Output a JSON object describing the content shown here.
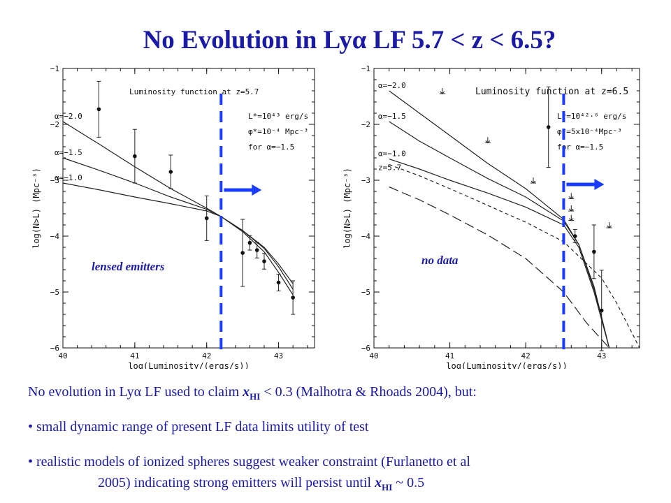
{
  "title": {
    "prefix": "No Evolution in Ly",
    "greek": "α",
    "suffix": " LF 5.7 < z < 6.5?"
  },
  "body": {
    "line1": {
      "pre": "No evolution in Ly",
      "greek": "α",
      "mid": " LF used to claim ",
      "x": "x",
      "sub": "HI",
      "post": " < 0.3 (Malhotra & Rhoads 2004), but:"
    },
    "bullet1": "• small dynamic range of present LF data limits utility of test",
    "bullet2": "• realistic models of ionized spheres suggest weaker constraint (Furlanetto et al",
    "bullet2b": {
      "pre": "2005) indicating strong emitters will persist until ",
      "x": "x",
      "sub": "HI",
      "post": " ~ 0.5"
    }
  },
  "colors": {
    "accent": "#1a1aa6",
    "dashed_line": "#1a3cff",
    "curve": "#222222"
  },
  "chart_data": [
    {
      "type": "line",
      "title": "Luminosity function at z=5.7",
      "xlabel": "log(Luminosity/(ergs/s))",
      "ylabel": "log(N>L) (Mpc⁻³)",
      "xlim": [
        40,
        43.5
      ],
      "ylim": [
        -6,
        -1
      ],
      "xticks": [
        40,
        41,
        42,
        43
      ],
      "yticks": [
        -1,
        -2,
        -3,
        -4,
        -5,
        -6
      ],
      "annotations": [
        "L*=10⁴³ erg/s",
        "φ*=10⁻⁴ Mpc⁻³",
        "for α=−1.5"
      ],
      "series": [
        {
          "name": "α=−2.0",
          "x": [
            40,
            40.5,
            41,
            41.5,
            42,
            42.2,
            42.5,
            42.8,
            43,
            43.2
          ],
          "y": [
            -1.95,
            -2.35,
            -2.76,
            -3.15,
            -3.5,
            -3.65,
            -3.9,
            -4.2,
            -4.5,
            -4.85
          ]
        },
        {
          "name": "α=−1.5",
          "x": [
            40,
            40.5,
            41,
            41.5,
            42,
            42.2,
            42.5,
            42.8,
            43,
            43.2
          ],
          "y": [
            -2.6,
            -2.82,
            -3.05,
            -3.3,
            -3.52,
            -3.65,
            -3.9,
            -4.22,
            -4.55,
            -4.95
          ]
        },
        {
          "name": "α=−1.0",
          "x": [
            40,
            40.5,
            41,
            41.5,
            42,
            42.2,
            42.5,
            42.8,
            43,
            43.2
          ],
          "y": [
            -3.05,
            -3.17,
            -3.3,
            -3.42,
            -3.55,
            -3.65,
            -3.92,
            -4.28,
            -4.65,
            -5.05
          ]
        }
      ],
      "points": {
        "x": [
          40.5,
          41,
          41.5,
          42,
          42.5,
          42.6,
          42.7,
          42.8,
          43.0,
          43.2
        ],
        "y": [
          -1.73,
          -2.57,
          -2.85,
          -3.68,
          -4.3,
          -4.12,
          -4.25,
          -4.45,
          -4.83,
          -5.1
        ],
        "yerr": [
          0.5,
          0.48,
          0.3,
          0.4,
          0.6,
          0.13,
          0.14,
          0.14,
          0.15,
          0.3
        ]
      },
      "threshold_x": 42.2,
      "overlay_label": "lensed emitters"
    },
    {
      "type": "line",
      "title": "Luminosity function at z=6.5",
      "xlabel": "log(Luminosity/(ergs/s))",
      "ylabel": "log(N>L) (Mpc⁻³)",
      "xlim": [
        40,
        43.5
      ],
      "ylim": [
        -6,
        -1
      ],
      "xticks": [
        40,
        41,
        42,
        43
      ],
      "yticks": [
        -1,
        -2,
        -3,
        -4,
        -5,
        -6
      ],
      "annotations": [
        "L*=10⁴²·⁶ erg/s",
        "φ*=5x10⁻⁴Mpc⁻³",
        "for α=−1.5"
      ],
      "series": [
        {
          "name": "α=−2.0",
          "x": [
            40.2,
            40.6,
            41,
            41.5,
            42,
            42.5,
            42.7,
            42.9,
            43.1
          ],
          "y": [
            -1.4,
            -1.8,
            -2.2,
            -2.7,
            -3.15,
            -3.7,
            -4.15,
            -4.9,
            -6.0
          ]
        },
        {
          "name": "α=−1.5",
          "x": [
            40.2,
            40.6,
            41,
            41.5,
            42,
            42.5,
            42.7,
            42.9,
            43.1
          ],
          "y": [
            -1.95,
            -2.3,
            -2.6,
            -2.97,
            -3.3,
            -3.73,
            -4.15,
            -4.95,
            -6.0
          ]
        },
        {
          "name": "α=−1.0",
          "x": [
            40.2,
            40.6,
            41,
            41.5,
            42,
            42.5,
            42.7,
            42.9,
            43.1
          ],
          "y": [
            -2.62,
            -2.8,
            -3.0,
            -3.23,
            -3.48,
            -3.8,
            -4.2,
            -5.0,
            -6.0
          ]
        },
        {
          "name": "z=5.7",
          "x": [
            40.2,
            40.6,
            41,
            41.5,
            42,
            42.5,
            43,
            43.2,
            43.5
          ],
          "y": [
            -2.72,
            -2.92,
            -3.15,
            -3.45,
            -3.75,
            -4.1,
            -4.75,
            -5.2,
            -6.0
          ]
        },
        {
          "name": "z=5.7",
          "x": [
            40.2,
            40.6,
            41,
            41.5,
            42,
            42.5,
            42.8,
            43.1
          ],
          "y": [
            -3.12,
            -3.35,
            -3.62,
            -3.98,
            -4.4,
            -5.0,
            -5.55,
            -6.0
          ]
        }
      ],
      "points": {
        "x": [
          42.3,
          42.65,
          42.9,
          43.0
        ],
        "y": [
          -2.05,
          -4.0,
          -4.28,
          -5.33
        ],
        "yerr": [
          0.72,
          0.12,
          0.48,
          0.72
        ]
      },
      "upper_limits": {
        "x": [
          40.9,
          41.5,
          42.1,
          42.6,
          42.6,
          42.6,
          43.1
        ],
        "y": [
          -1.45,
          -2.33,
          -3.05,
          -3.33,
          -3.55,
          -3.72,
          -3.85
        ]
      },
      "threshold_x": 42.5,
      "overlay_label": "no data"
    }
  ]
}
